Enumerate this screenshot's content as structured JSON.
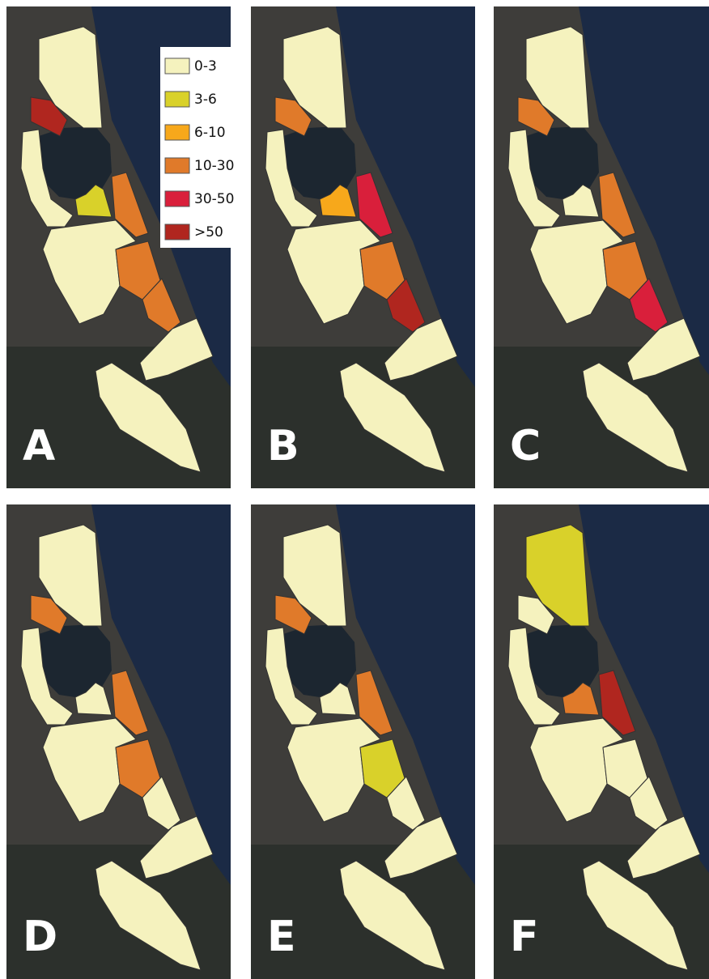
{
  "legend": {
    "items": [
      {
        "label": "0-3",
        "color": "#f5f2be"
      },
      {
        "label": "3-6",
        "color": "#d9d12a"
      },
      {
        "label": "6-10",
        "color": "#f7a81b"
      },
      {
        "label": "10-30",
        "color": "#e07a2a"
      },
      {
        "label": "30-50",
        "color": "#d91f3b"
      },
      {
        "label": ">50",
        "color": "#b0261f"
      }
    ]
  },
  "panels": [
    {
      "label": "A"
    },
    {
      "label": "B"
    },
    {
      "label": "C"
    },
    {
      "label": "D"
    },
    {
      "label": "E"
    },
    {
      "label": "F"
    }
  ]
}
